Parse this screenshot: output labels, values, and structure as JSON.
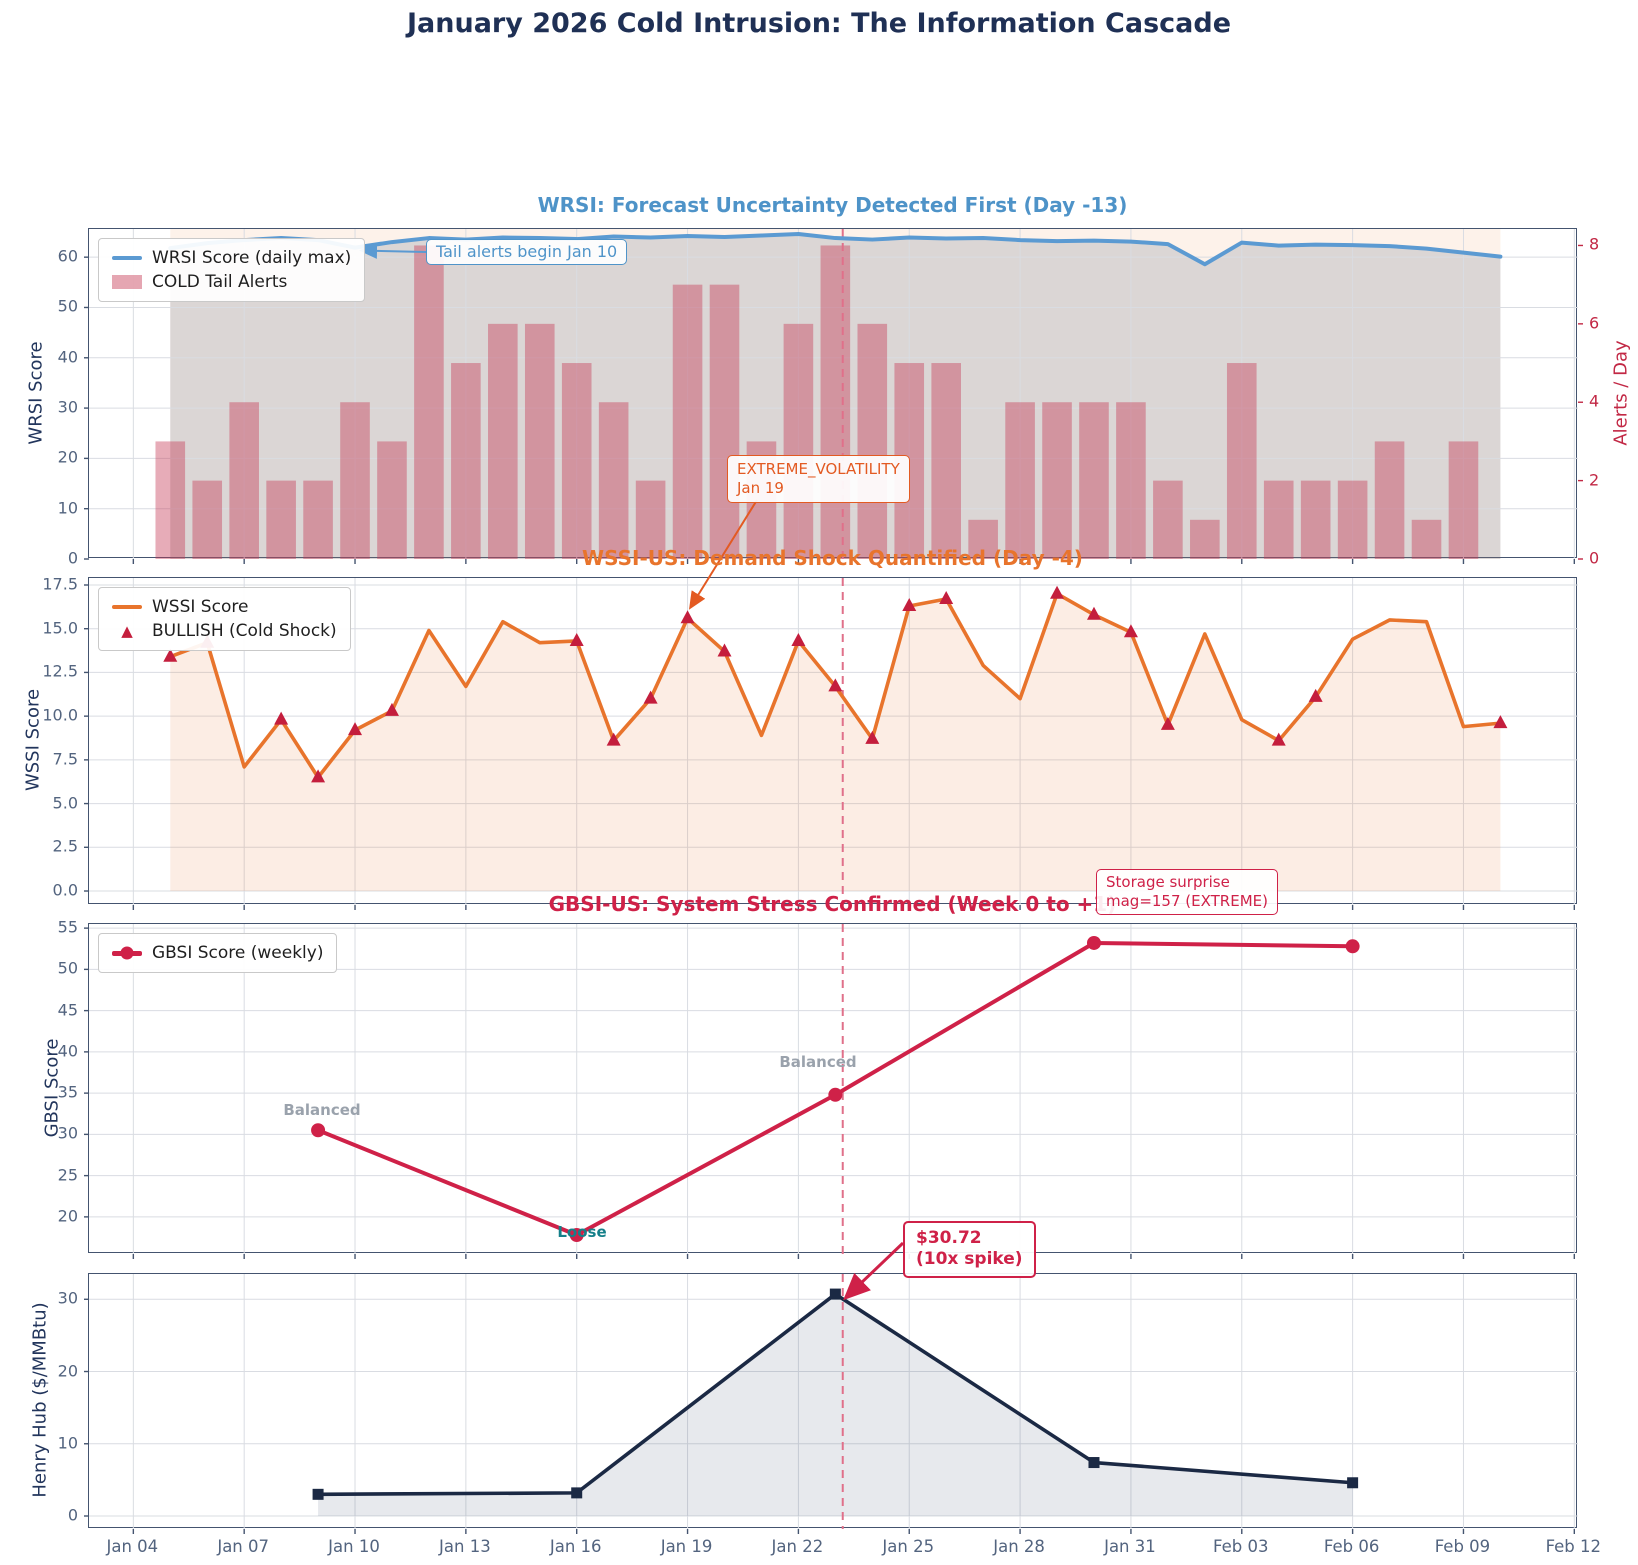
{
  "page_title": "January 2026 Cold Intrusion: The Information Cascade",
  "colors": {
    "title_navy": "#1f3055",
    "wrsi_blue": "#5b9ad2",
    "wrsi_title_blue": "#4e93c8",
    "alert_bar_pink": "rgba(197,57,85,0.42)",
    "cold_span_peach": "rgba(237,125,49,0.10)",
    "wrsi_fill_gray": "rgba(101,115,140,0.22)",
    "wssi_orange": "#e8742c",
    "wssi_fill": "rgba(232,116,44,0.13)",
    "bullish_crimson": "#c41e3d",
    "gbsi_crimson": "#cf2148",
    "henry_navy": "#1b2944",
    "henry_fill": "rgba(60,75,105,0.12)",
    "vline_pink": "#e0708a",
    "balanced_gray": "#9aa2ac",
    "loose_teal": "#15808a",
    "alerts_axis_red": "#c22845",
    "grid": "#d9dce2",
    "spine": "#44546f",
    "tick_text": "#53647f"
  },
  "x_axis": {
    "domain_days": [
      -1.2,
      39.1
    ],
    "tick_days": [
      0,
      3,
      6,
      9,
      12,
      15,
      18,
      21,
      24,
      27,
      30,
      33,
      36,
      39
    ],
    "tick_labels": [
      "Jan 04",
      "Jan 07",
      "Jan 10",
      "Jan 13",
      "Jan 16",
      "Jan 19",
      "Jan 22",
      "Jan 25",
      "Jan 28",
      "Jan 31",
      "Feb 03",
      "Feb 06",
      "Feb 09",
      "Feb 12"
    ]
  },
  "vline_day": 19.2,
  "chart_data": [
    {
      "id": "wrsi",
      "type": "line+bar",
      "title": "WRSI: Forecast Uncertainty Detected First (Day -13)",
      "ylabel": "WRSI Score",
      "y2label": "Alerts / Day",
      "ylim": [
        0,
        65.6
      ],
      "ytick_vals": [
        0,
        10,
        20,
        30,
        40,
        50,
        60
      ],
      "yticks": [
        "0",
        "10",
        "20",
        "30",
        "40",
        "50",
        "60"
      ],
      "y2lim": [
        0,
        8.42
      ],
      "y2tick_vals": [
        0,
        2,
        4,
        6,
        8
      ],
      "y2ticks": [
        "0",
        "2",
        "4",
        "6",
        "8"
      ],
      "legend": [
        "WRSI Score (daily max)",
        "COLD Tail Alerts"
      ],
      "start_day": 1,
      "dates": [
        "Jan 05",
        "Jan 06",
        "Jan 07",
        "Jan 08",
        "Jan 09",
        "Jan 10",
        "Jan 11",
        "Jan 12",
        "Jan 13",
        "Jan 14",
        "Jan 15",
        "Jan 16",
        "Jan 17",
        "Jan 18",
        "Jan 19",
        "Jan 20",
        "Jan 21",
        "Jan 22",
        "Jan 23",
        "Jan 24",
        "Jan 25",
        "Jan 26",
        "Jan 27",
        "Jan 28",
        "Jan 29",
        "Jan 30",
        "Jan 31",
        "Feb 01",
        "Feb 02",
        "Feb 03",
        "Feb 04",
        "Feb 05",
        "Feb 06",
        "Feb 07",
        "Feb 08",
        "Feb 09",
        "Feb 10"
      ],
      "wrsi_values": [
        61.8,
        62.8,
        63.4,
        63.8,
        63.4,
        61.9,
        63.0,
        63.8,
        63.5,
        63.9,
        63.8,
        63.6,
        64.1,
        63.9,
        64.2,
        64.0,
        64.3,
        64.6,
        63.8,
        63.5,
        63.9,
        63.7,
        63.8,
        63.4,
        63.2,
        63.3,
        63.1,
        62.6,
        58.6,
        62.9,
        62.3,
        62.5,
        62.4,
        62.2,
        61.7,
        60.9,
        60.1
      ],
      "alert_values": [
        3,
        2,
        4,
        2,
        2,
        4,
        3,
        8,
        5,
        6,
        6,
        5,
        4,
        2,
        7,
        7,
        3,
        6,
        8,
        6,
        5,
        5,
        1,
        4,
        4,
        4,
        4,
        2,
        1,
        5,
        2,
        2,
        2,
        3,
        1,
        3,
        0
      ],
      "annotation": {
        "text": "Tail alerts begin Jan 10",
        "target_day": 6,
        "target_value": 61.9
      }
    },
    {
      "id": "wssi",
      "type": "line",
      "title": "WSSI-US: Demand Shock Quantified (Day -4)",
      "ylabel": "WSSI Score",
      "ylim": [
        -0.8,
        17.9
      ],
      "ytick_vals": [
        0,
        2.5,
        5,
        7.5,
        10,
        12.5,
        15,
        17.5
      ],
      "yticks": [
        "0.0",
        "2.5",
        "5.0",
        "7.5",
        "10.0",
        "12.5",
        "15.0",
        "17.5"
      ],
      "legend": [
        "WSSI Score",
        "BULLISH (Cold Shock)"
      ],
      "start_day": 1,
      "dates": [
        "Jan 05",
        "Jan 06",
        "Jan 07",
        "Jan 08",
        "Jan 09",
        "Jan 10",
        "Jan 11",
        "Jan 12",
        "Jan 13",
        "Jan 14",
        "Jan 15",
        "Jan 16",
        "Jan 17",
        "Jan 18",
        "Jan 19",
        "Jan 20",
        "Jan 21",
        "Jan 22",
        "Jan 23",
        "Jan 24",
        "Jan 25",
        "Jan 26",
        "Jan 27",
        "Jan 28",
        "Jan 29",
        "Jan 30",
        "Jan 31",
        "Feb 01",
        "Feb 02",
        "Feb 03",
        "Feb 04",
        "Feb 05",
        "Feb 06",
        "Feb 07",
        "Feb 08",
        "Feb 09",
        "Feb 10"
      ],
      "values": [
        13.4,
        14.2,
        7.1,
        9.8,
        6.5,
        9.2,
        10.3,
        14.9,
        11.7,
        15.4,
        14.2,
        14.3,
        8.6,
        11.0,
        15.6,
        13.7,
        8.9,
        14.3,
        11.7,
        8.7,
        16.3,
        16.7,
        12.9,
        11.0,
        17.0,
        15.8,
        14.8,
        9.5,
        14.7,
        9.8,
        8.6,
        11.1,
        14.4,
        15.5,
        15.4,
        9.4,
        9.6
      ],
      "bullish_days": [
        1,
        2,
        4,
        5,
        6,
        7,
        12,
        13,
        14,
        15,
        16,
        18,
        19,
        20,
        21,
        22,
        25,
        26,
        27,
        28,
        31,
        32,
        37
      ],
      "annotation": {
        "line1": "EXTREME_VOLATILITY",
        "line2": "Jan 19",
        "target_day": 15,
        "target_value": 15.6
      }
    },
    {
      "id": "gbsi",
      "type": "line",
      "title": "GBSI-US: System Stress Confirmed (Week 0 to +1)",
      "ylabel": "GBSI Score",
      "ylim": [
        15.5,
        55.5
      ],
      "ytick_vals": [
        20,
        25,
        30,
        35,
        40,
        45,
        50,
        55
      ],
      "yticks": [
        "20",
        "25",
        "30",
        "35",
        "40",
        "45",
        "50",
        "55"
      ],
      "legend": [
        "GBSI Score (weekly)"
      ],
      "dates": [
        "Jan 09",
        "Jan 16",
        "Jan 23",
        "Jan 30",
        "Feb 06"
      ],
      "days": [
        5,
        12,
        19,
        26,
        33
      ],
      "values": [
        30.5,
        17.8,
        34.8,
        53.2,
        52.8
      ],
      "point_labels": [
        "Balanced",
        "Loose",
        "Balanced",
        "",
        ""
      ],
      "annotation": {
        "line1": "Storage surprise",
        "line2": "mag=157 (EXTREME)"
      }
    },
    {
      "id": "henry",
      "type": "line",
      "title": "",
      "ylabel": "Henry Hub ($/MMBtu)",
      "ylim": [
        -1.8,
        33.5
      ],
      "ytick_vals": [
        0,
        10,
        20,
        30
      ],
      "yticks": [
        "0",
        "10",
        "20",
        "30"
      ],
      "dates": [
        "Jan 09",
        "Jan 16",
        "Jan 23",
        "Jan 30",
        "Feb 06"
      ],
      "days": [
        5,
        12,
        19,
        26,
        33
      ],
      "values": [
        3.0,
        3.2,
        30.72,
        7.4,
        4.6
      ],
      "annotation": {
        "line1": "$30.72",
        "line2": "(10x spike)",
        "target_day": 19,
        "target_value": 30.72
      }
    }
  ]
}
